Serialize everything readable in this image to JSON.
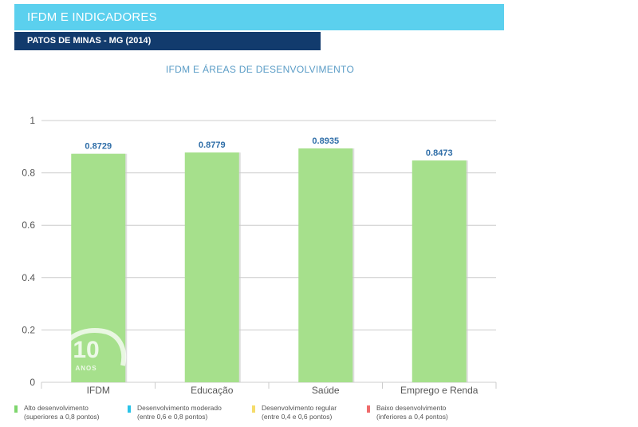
{
  "header": {
    "title": "IFDM E INDICADORES"
  },
  "subheader": {
    "title": "PATOS DE MINAS - MG (2014)"
  },
  "chart_data": {
    "type": "bar",
    "title": "IFDM E ÁREAS DE DESENVOLVIMENTO",
    "categories": [
      "IFDM",
      "Educação",
      "Saúde",
      "Emprego e Renda"
    ],
    "values": [
      0.8729,
      0.8779,
      0.8935,
      0.8473
    ],
    "value_labels": [
      "0.8729",
      "0.8779",
      "0.8935",
      "0.8473"
    ],
    "yticks": [
      "0",
      "0.2",
      "0.4",
      "0.6",
      "0.8",
      "1"
    ],
    "ytick_values": [
      0,
      0.2,
      0.4,
      0.6,
      0.8,
      1
    ],
    "ylim": [
      0,
      1
    ],
    "xlabel": "",
    "ylabel": "",
    "grid": true,
    "bar_color": "#a6e08c",
    "label_color": "#2f6ea8",
    "grid_color": "#cccccc"
  },
  "legend": {
    "items": [
      {
        "line1": "Alto desenvolvimento",
        "line2": "(superiores a 0,8 pontos)",
        "color": "#7ed66d"
      },
      {
        "line1": "Desenvolvimento moderado",
        "line2": "(entre 0,6 e 0,8 pontos)",
        "color": "#29c3e8"
      },
      {
        "line1": "Desenvolvimento regular",
        "line2": "(entre 0,4 e 0,6 pontos)",
        "color": "#f5dc6a"
      },
      {
        "line1": "Baixo desenvolvimento",
        "line2": "(inferiores a 0,4 pontos)",
        "color": "#ef6b6b"
      }
    ]
  },
  "watermark": {
    "text1": "10",
    "text2": "ANOS"
  },
  "colors": {
    "header": "#5bd0ee",
    "subheader": "#123b6d",
    "title": "#5a9cc6"
  }
}
